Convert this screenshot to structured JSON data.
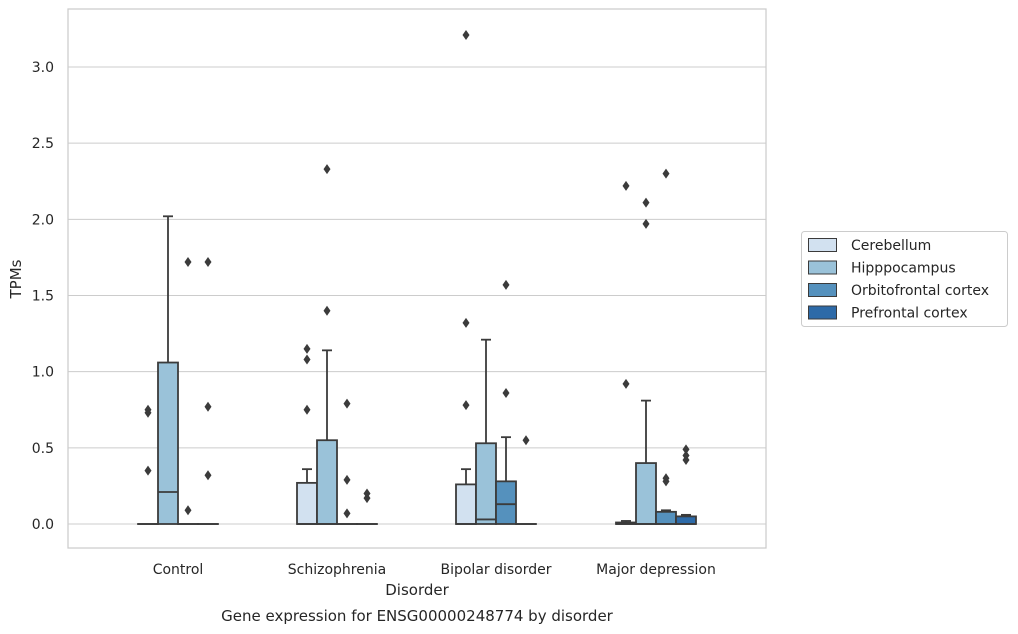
{
  "chart_data": {
    "type": "box",
    "title": "Gene expression for ENSG00000248774 by disorder",
    "xlabel": "Disorder",
    "ylabel": "TPMs",
    "ylim": [
      -0.16,
      3.38
    ],
    "yticks": [
      0.0,
      0.5,
      1.0,
      1.5,
      2.0,
      2.5,
      3.0
    ],
    "ytick_labels": [
      "0.0",
      "0.5",
      "1.0",
      "1.5",
      "2.0",
      "2.5",
      "3.0"
    ],
    "grid": "horizontal",
    "legend_placement": "right",
    "categories": [
      "Control",
      "Schizophrenia",
      "Bipolar disorder",
      "Major depression"
    ],
    "series": [
      {
        "name": "Cerebellum",
        "color": "#d2e1f0",
        "boxes": [
          {
            "q1": 0.0,
            "median": 0.0,
            "q3": 0.0,
            "whislo": 0.0,
            "whishi": 0.0,
            "fliers": [
              0.35,
              0.73,
              0.75
            ]
          },
          {
            "q1": 0.0,
            "median": 0.0,
            "q3": 0.27,
            "whislo": 0.0,
            "whishi": 0.36,
            "fliers": [
              0.75,
              1.08,
              1.15
            ]
          },
          {
            "q1": 0.0,
            "median": 0.0,
            "q3": 0.26,
            "whislo": 0.0,
            "whishi": 0.36,
            "fliers": [
              0.78,
              1.32,
              3.21
            ]
          },
          {
            "q1": 0.0,
            "median": 0.0,
            "q3": 0.01,
            "whislo": 0.0,
            "whishi": 0.02,
            "fliers": [
              0.92,
              2.22
            ]
          }
        ]
      },
      {
        "name": "Hipppocampus",
        "color": "#9ac2d9",
        "boxes": [
          {
            "q1": 0.0,
            "median": 0.21,
            "q3": 1.06,
            "whislo": 0.0,
            "whishi": 2.02,
            "fliers": []
          },
          {
            "q1": 0.0,
            "median": 0.0,
            "q3": 0.55,
            "whislo": 0.0,
            "whishi": 1.14,
            "fliers": [
              1.4,
              2.33
            ]
          },
          {
            "q1": 0.0,
            "median": 0.03,
            "q3": 0.53,
            "whislo": 0.0,
            "whishi": 1.21,
            "fliers": []
          },
          {
            "q1": 0.0,
            "median": 0.0,
            "q3": 0.4,
            "whislo": 0.0,
            "whishi": 0.81,
            "fliers": [
              1.97,
              2.11
            ]
          }
        ]
      },
      {
        "name": "Orbitofrontal cortex",
        "color": "#5591bd",
        "boxes": [
          {
            "q1": 0.0,
            "median": 0.0,
            "q3": 0.0,
            "whislo": 0.0,
            "whishi": 0.0,
            "fliers": [
              0.09,
              1.72
            ]
          },
          {
            "q1": 0.0,
            "median": 0.0,
            "q3": 0.0,
            "whislo": 0.0,
            "whishi": 0.0,
            "fliers": [
              0.07,
              0.29,
              0.79
            ]
          },
          {
            "q1": 0.0,
            "median": 0.13,
            "q3": 0.28,
            "whislo": 0.0,
            "whishi": 0.57,
            "fliers": [
              0.86,
              1.57
            ]
          },
          {
            "q1": 0.0,
            "median": 0.0,
            "q3": 0.08,
            "whislo": 0.0,
            "whishi": 0.09,
            "fliers": [
              0.28,
              0.3,
              2.3
            ]
          }
        ]
      },
      {
        "name": "Prefrontal cortex",
        "color": "#2d6aa8",
        "boxes": [
          {
            "q1": 0.0,
            "median": 0.0,
            "q3": 0.0,
            "whislo": 0.0,
            "whishi": 0.0,
            "fliers": [
              0.32,
              0.77,
              1.72
            ]
          },
          {
            "q1": 0.0,
            "median": 0.0,
            "q3": 0.0,
            "whislo": 0.0,
            "whishi": 0.0,
            "fliers": [
              0.17,
              0.2
            ]
          },
          {
            "q1": 0.0,
            "median": 0.0,
            "q3": 0.0,
            "whislo": 0.0,
            "whishi": 0.0,
            "fliers": [
              0.55
            ]
          },
          {
            "q1": 0.0,
            "median": 0.0,
            "q3": 0.05,
            "whislo": 0.0,
            "whishi": 0.06,
            "fliers": [
              0.42,
              0.45,
              0.49
            ]
          }
        ]
      }
    ]
  }
}
